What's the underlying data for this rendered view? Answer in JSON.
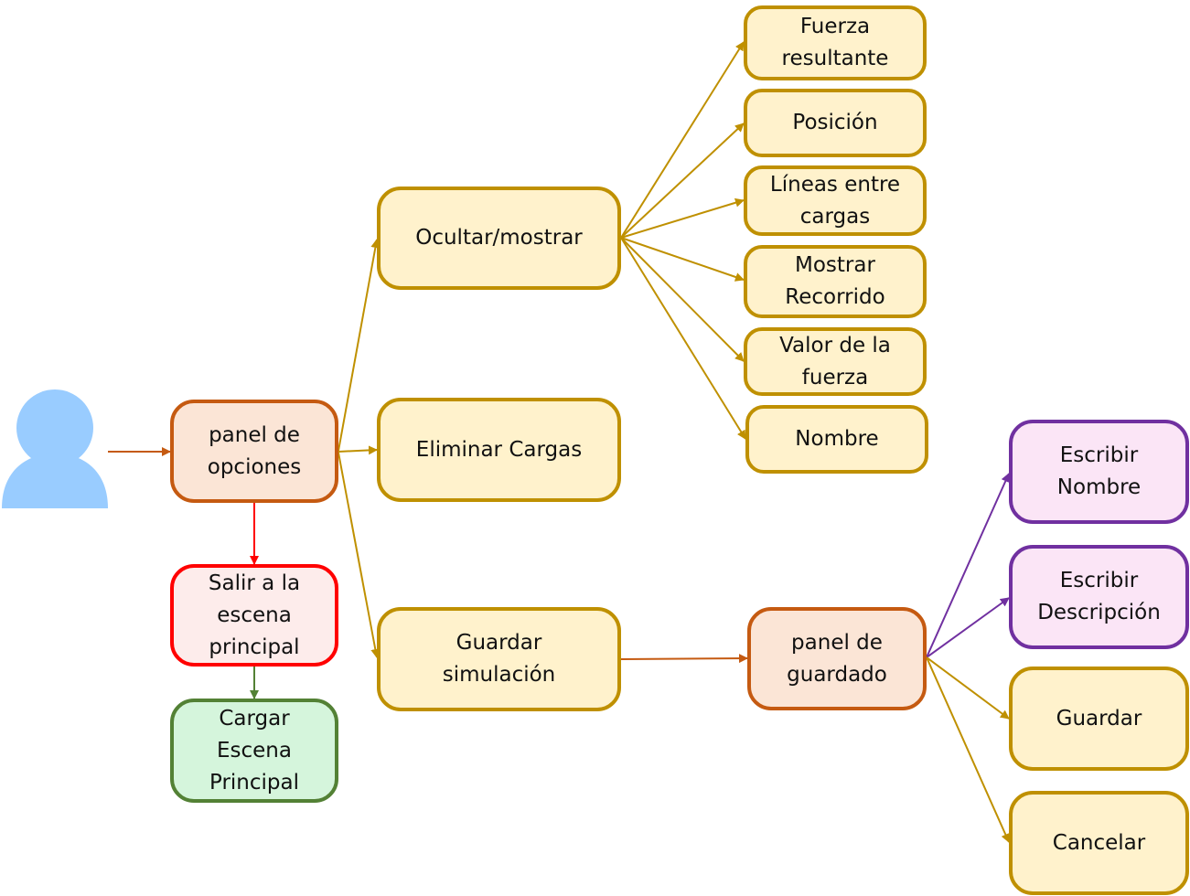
{
  "diagram": {
    "user": {
      "icon": "user-icon"
    },
    "nodes": {
      "panel_opciones": "panel de\nopciones",
      "salir": "Salir a la\nescena\nprincipal",
      "cargar": "Cargar\nEscena\nPrincipal",
      "ocultar": "Ocultar/mostrar",
      "eliminar": "Eliminar Cargas",
      "guardar_sim": "Guardar\nsimulación",
      "fuerza_resultante": "Fuerza\nresultante",
      "posicion": "Posición",
      "lineas": "Líneas entre\ncargas",
      "recorrido": "Mostrar\nRecorrido",
      "valor_fuerza": "Valor de la\nfuerza",
      "nombre": "Nombre",
      "panel_guardado": "panel de\nguardado",
      "escribir_nombre": "Escribir\nNombre",
      "escribir_desc": "Escribir\nDescripción",
      "guardar": "Guardar",
      "cancelar": "Cancelar"
    },
    "colors": {
      "yellow_fill": "#fff2cc",
      "yellow_border": "#bf9000",
      "orange_fill": "#fbe5d6",
      "orange_border": "#c55a11",
      "red_fill": "#fdeceb",
      "red_border": "#ff0000",
      "green_fill": "#d5f5dc",
      "green_border": "#538135",
      "purple_fill": "#fbe5f6",
      "purple_border": "#7030a0",
      "user_icon": "#99ccff"
    }
  }
}
